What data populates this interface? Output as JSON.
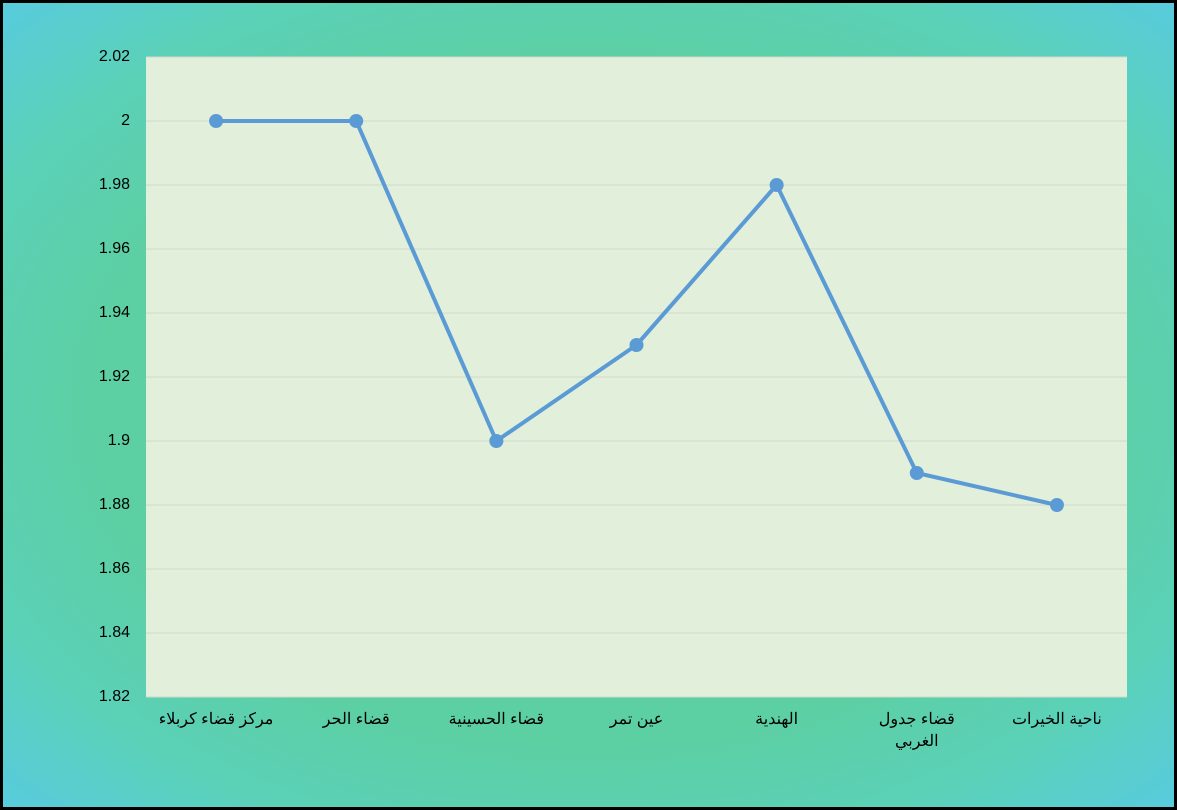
{
  "chart_data": {
    "type": "line",
    "categories": [
      "مركز قضاء كربلاء",
      "قضاء الحر",
      "قضاء الحسينية",
      "عين تمر",
      "الهندية",
      "قضاء جدول الغربي",
      "ناحية الخيرات"
    ],
    "values": [
      2,
      2,
      1.9,
      1.93,
      1.98,
      1.89,
      1.88
    ],
    "color": "#5b9bd5",
    "ylim": [
      1.82,
      2.02
    ],
    "yticks": [
      1.82,
      1.84,
      1.86,
      1.88,
      1.9,
      1.92,
      1.94,
      1.96,
      1.98,
      2,
      2.02
    ],
    "grid": true
  }
}
